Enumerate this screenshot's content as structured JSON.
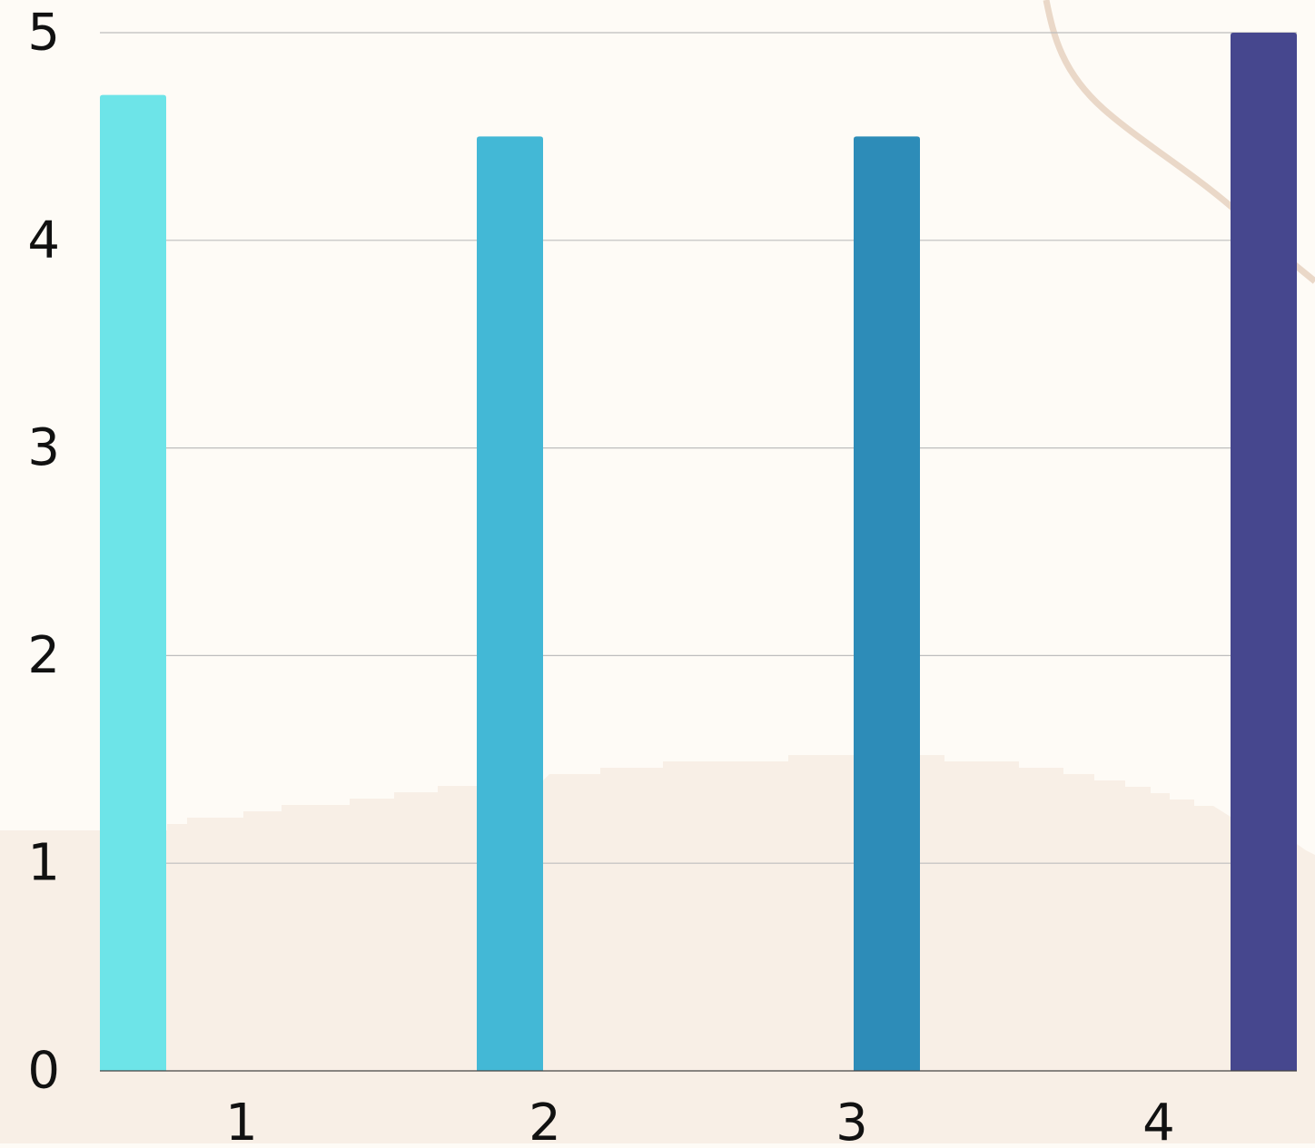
{
  "colors": {
    "background": "#fefbf6",
    "decor_fill": "#f8efe6",
    "decor_line": "#ead8c8",
    "gridline": "#bdbdbd",
    "axis_line": "#444444",
    "tick_text": "#111111"
  },
  "chart_data": {
    "type": "bar",
    "title": "",
    "xlabel": "",
    "ylabel": "",
    "categories": [
      "1",
      "2",
      "3",
      "4"
    ],
    "values": [
      4.7,
      4.5,
      4.5,
      5.0
    ],
    "bar_colors": [
      "#6de4e8",
      "#43b8d6",
      "#2d8cb8",
      "#46478e"
    ],
    "ylim": [
      0,
      5
    ],
    "yticks": [
      "0",
      "1",
      "2",
      "3",
      "4",
      "5"
    ],
    "grid": true,
    "legend": "none"
  }
}
